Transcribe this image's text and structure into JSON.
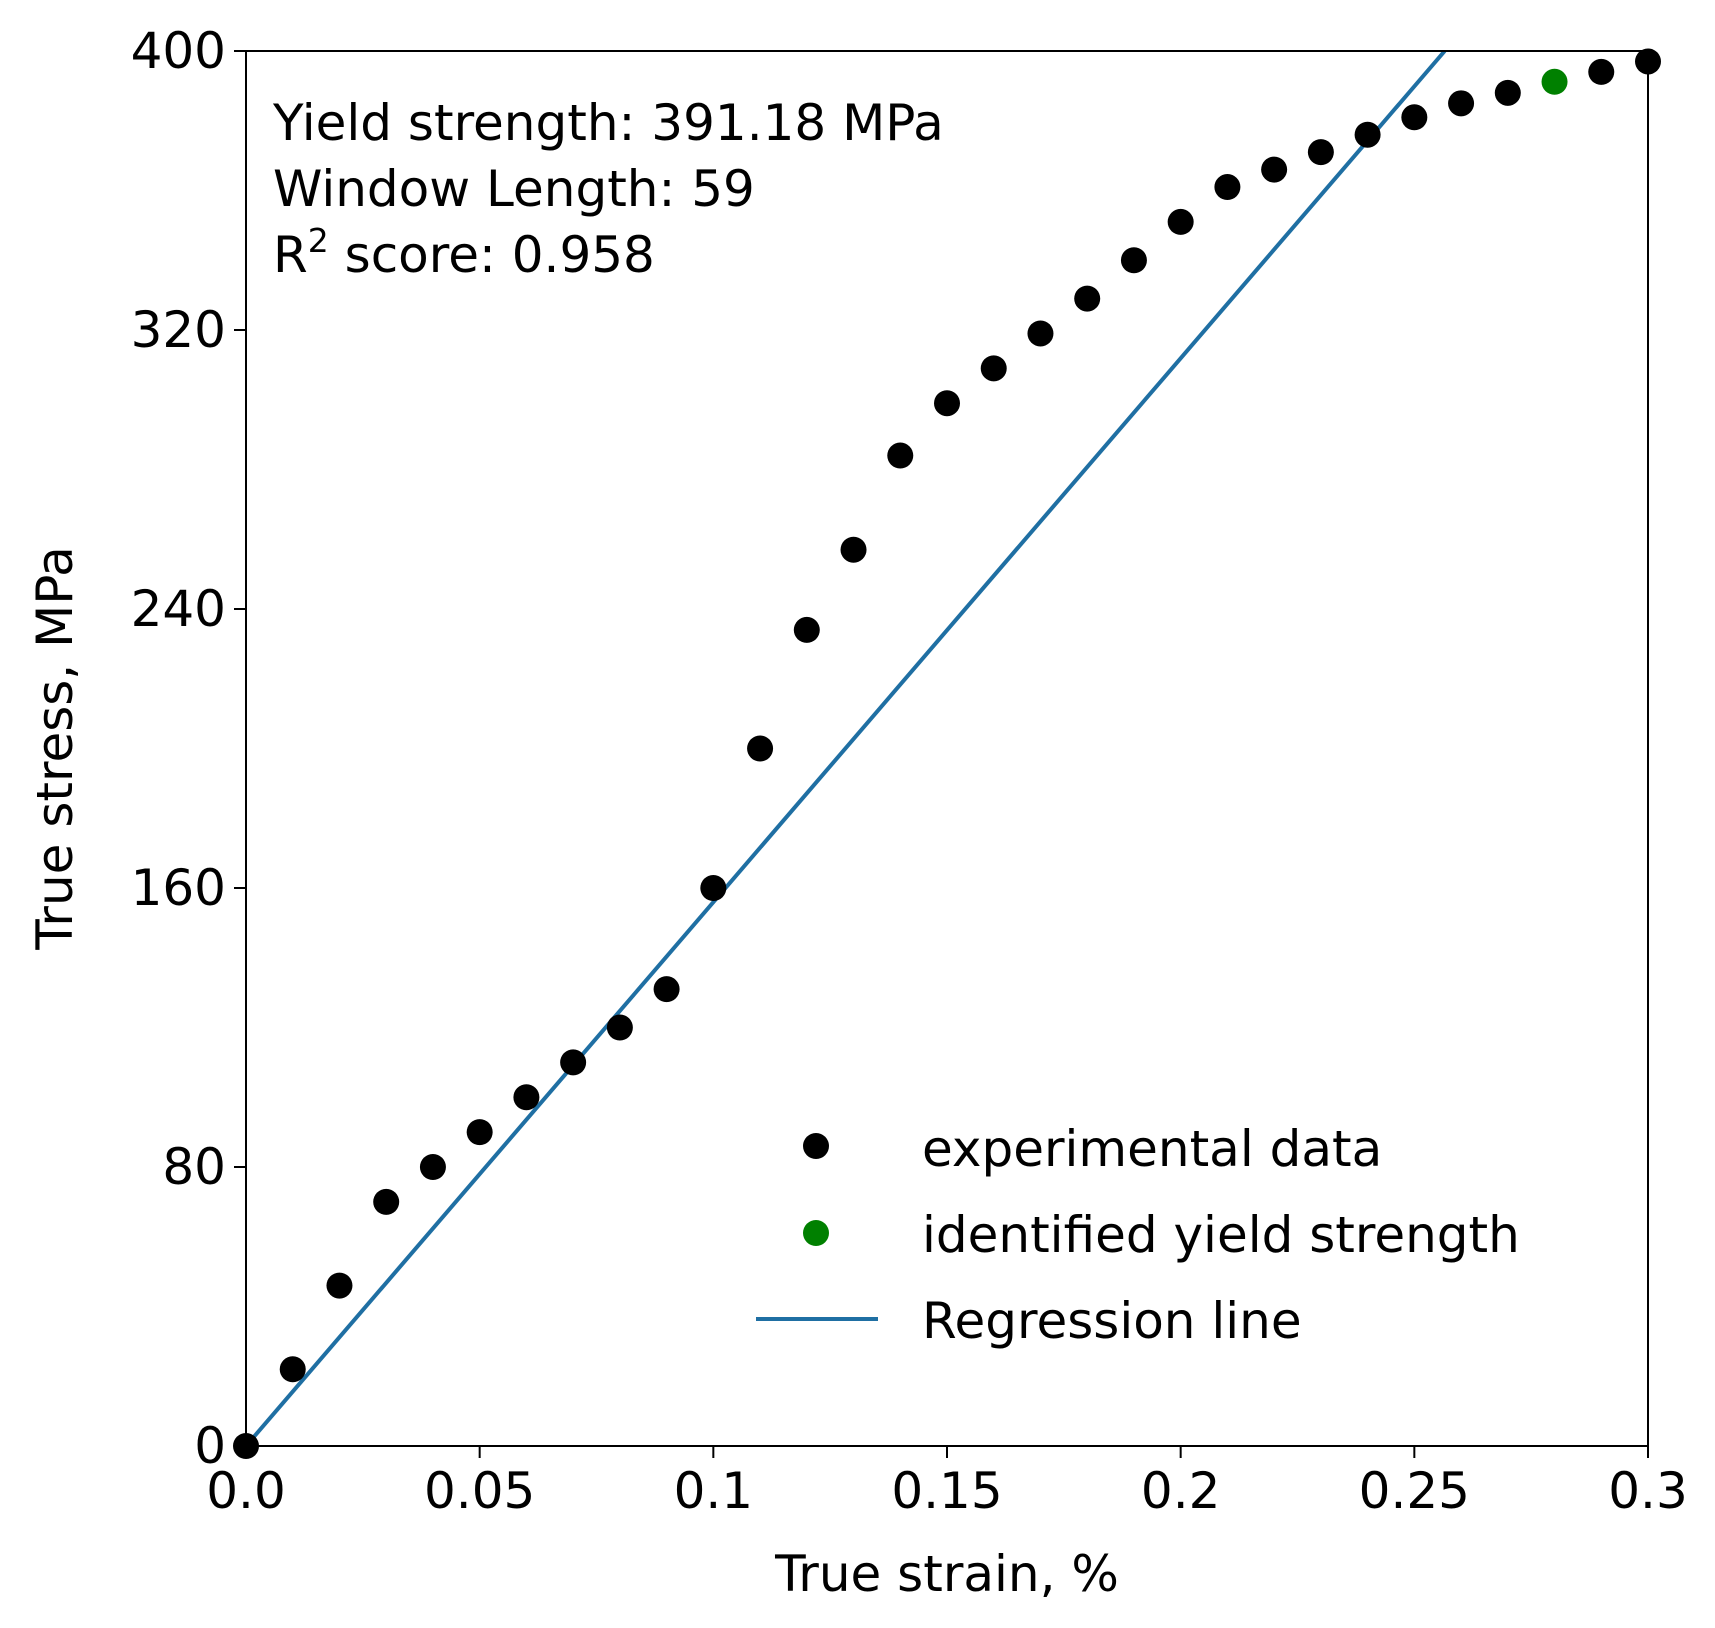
{
  "chart_data": {
    "type": "scatter",
    "xlabel": "True strain, %",
    "ylabel": "True stress, MPa",
    "xlim": [
      0.0,
      0.3
    ],
    "ylim": [
      0,
      400
    ],
    "xticks": [
      {
        "value": 0.0,
        "label": "0.0"
      },
      {
        "value": 0.05,
        "label": "0.05"
      },
      {
        "value": 0.1,
        "label": "0.1"
      },
      {
        "value": 0.15,
        "label": "0.15"
      },
      {
        "value": 0.2,
        "label": "0.2"
      },
      {
        "value": 0.25,
        "label": "0.25"
      },
      {
        "value": 0.3,
        "label": "0.3"
      }
    ],
    "yticks": [
      {
        "value": 0,
        "label": "0"
      },
      {
        "value": 80,
        "label": "80"
      },
      {
        "value": 160,
        "label": "160"
      },
      {
        "value": 240,
        "label": "240"
      },
      {
        "value": 320,
        "label": "320"
      },
      {
        "value": 400,
        "label": "400"
      }
    ],
    "grid": false,
    "legend_position": "lower-right",
    "annotations": {
      "yield_strength": "Yield strength: 391.18 MPa",
      "window_length": "Window Length: 59",
      "r2_prefix": "R",
      "r2_superscript": "2",
      "r2_suffix": " score: 0.958"
    },
    "series": [
      {
        "name": "experimental data",
        "kind": "points",
        "color": "#000000",
        "x": [
          0.0,
          0.01,
          0.02,
          0.03,
          0.04,
          0.05,
          0.06,
          0.07,
          0.08,
          0.09,
          0.1,
          0.11,
          0.12,
          0.13,
          0.14,
          0.15,
          0.16,
          0.17,
          0.18,
          0.19,
          0.2,
          0.21,
          0.22,
          0.23,
          0.24,
          0.25,
          0.26,
          0.27,
          0.29,
          0.3
        ],
        "y": [
          0,
          22,
          46,
          70,
          80,
          90,
          100,
          110,
          120,
          131,
          160,
          200,
          234,
          257,
          284,
          299,
          309,
          319,
          329,
          340,
          351,
          361,
          366,
          371,
          376,
          381,
          385,
          388,
          394,
          397
        ]
      },
      {
        "name": "identified yield strength",
        "kind": "points",
        "color": "#008000",
        "x": [
          0.28
        ],
        "y": [
          391.18
        ]
      },
      {
        "name": "Regression line",
        "kind": "line",
        "color": "#1f6fa3",
        "x": [
          0.0,
          0.2565
        ],
        "y": [
          0,
          400
        ]
      }
    ]
  }
}
